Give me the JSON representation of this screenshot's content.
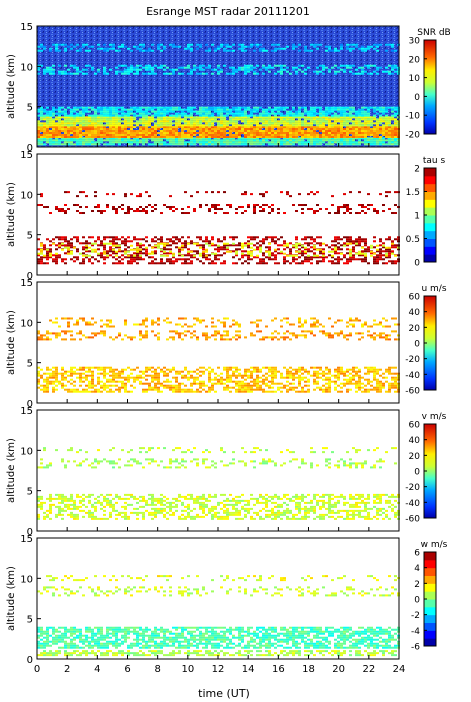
{
  "figure": {
    "title": "Esrange MST radar 20111201",
    "xlabel": "time (UT)"
  },
  "chart_data": [
    {
      "type": "heatmap",
      "ylabel": "altitude (km)",
      "colorbar_label": "SNR dB",
      "ylim": [
        0,
        15
      ],
      "yticks": [
        0,
        5,
        10,
        15
      ],
      "xlim": [
        0,
        24
      ],
      "xticks": [
        0,
        2,
        4,
        6,
        8,
        10,
        12,
        14,
        16,
        18,
        20,
        22,
        24
      ],
      "clim": [
        -20,
        30
      ],
      "cticks": [
        -20,
        -10,
        0,
        10,
        20,
        30
      ],
      "colormap": "jet"
    },
    {
      "type": "heatmap",
      "ylabel": "altitude (km)",
      "colorbar_label": "tau s",
      "ylim": [
        0,
        15
      ],
      "yticks": [
        0,
        5,
        10,
        15
      ],
      "xlim": [
        0,
        24
      ],
      "xticks": [
        0,
        2,
        4,
        6,
        8,
        10,
        12,
        14,
        16,
        18,
        20,
        22,
        24
      ],
      "clim": [
        0,
        2
      ],
      "cticks": [
        0,
        0.5,
        1,
        1.5,
        2
      ],
      "colormap": "jet-discrete"
    },
    {
      "type": "heatmap",
      "ylabel": "altitude (km)",
      "colorbar_label": "u m/s",
      "ylim": [
        0,
        15
      ],
      "yticks": [
        0,
        5,
        10,
        15
      ],
      "xlim": [
        0,
        24
      ],
      "xticks": [
        0,
        2,
        4,
        6,
        8,
        10,
        12,
        14,
        16,
        18,
        20,
        22,
        24
      ],
      "clim": [
        -60,
        60
      ],
      "cticks": [
        -60,
        -40,
        -20,
        0,
        20,
        40,
        60
      ],
      "colormap": "jet"
    },
    {
      "type": "heatmap",
      "ylabel": "altitude (km)",
      "colorbar_label": "v m/s",
      "ylim": [
        0,
        15
      ],
      "yticks": [
        0,
        5,
        10,
        15
      ],
      "xlim": [
        0,
        24
      ],
      "xticks": [
        0,
        2,
        4,
        6,
        8,
        10,
        12,
        14,
        16,
        18,
        20,
        22,
        24
      ],
      "clim": [
        -60,
        60
      ],
      "cticks": [
        -60,
        -40,
        -20,
        0,
        20,
        40,
        60
      ],
      "colormap": "jet"
    },
    {
      "type": "heatmap",
      "ylabel": "altitude (km)",
      "colorbar_label": "w m/s",
      "ylim": [
        0,
        15
      ],
      "yticks": [
        0,
        5,
        10,
        15
      ],
      "xlim": [
        0,
        24
      ],
      "xticks": [
        0,
        2,
        4,
        6,
        8,
        10,
        12,
        14,
        16,
        18,
        20,
        22,
        24
      ],
      "clim": [
        -6,
        6
      ],
      "cticks": [
        -6,
        -4,
        -2,
        0,
        2,
        4,
        6
      ],
      "colormap": "jet-discrete"
    }
  ]
}
